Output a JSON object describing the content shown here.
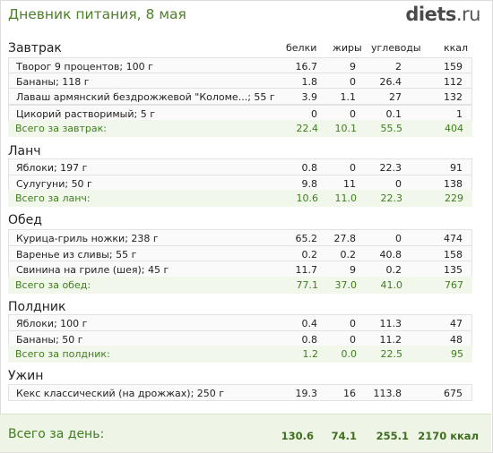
{
  "header": {
    "title": "Дневник питания, 8 мая",
    "logo_main": "diets",
    "logo_tld": ".ru"
  },
  "columns": {
    "protein": "белки",
    "fat": "жиры",
    "carbs": "углеводы",
    "kcal": "ккал"
  },
  "meals": [
    {
      "title": "Завтрак",
      "items": [
        {
          "name": "Творог 9 процентов; 100 г",
          "protein": "16.7",
          "fat": "9",
          "carbs": "2",
          "kcal": "159"
        },
        {
          "name": "Бананы; 118 г",
          "protein": "1.8",
          "fat": "0",
          "carbs": "26.4",
          "kcal": "112"
        },
        {
          "name": "Лаваш армянский бездрожжевой \"Коломе...; 55 г",
          "protein": "3.9",
          "fat": "1.1",
          "carbs": "27",
          "kcal": "132"
        },
        {
          "name": "Цикорий растворимый; 5 г",
          "protein": "0",
          "fat": "0",
          "carbs": "0.1",
          "kcal": "1"
        }
      ],
      "total": {
        "label": "Всего за завтрак:",
        "protein": "22.4",
        "fat": "10.1",
        "carbs": "55.5",
        "kcal": "404"
      }
    },
    {
      "title": "Ланч",
      "items": [
        {
          "name": "Яблоки; 197 г",
          "protein": "0.8",
          "fat": "0",
          "carbs": "22.3",
          "kcal": "91"
        },
        {
          "name": "Сулугуни; 50 г",
          "protein": "9.8",
          "fat": "11",
          "carbs": "0",
          "kcal": "138"
        }
      ],
      "total": {
        "label": "Всего за ланч:",
        "protein": "10.6",
        "fat": "11.0",
        "carbs": "22.3",
        "kcal": "229"
      }
    },
    {
      "title": "Обед",
      "items": [
        {
          "name": "Курица-гриль ножки; 238 г",
          "protein": "65.2",
          "fat": "27.8",
          "carbs": "0",
          "kcal": "474"
        },
        {
          "name": "Варенье из сливы; 55 г",
          "protein": "0.2",
          "fat": "0.2",
          "carbs": "40.8",
          "kcal": "158"
        },
        {
          "name": "Свинина на гриле (шея); 45 г",
          "protein": "11.7",
          "fat": "9",
          "carbs": "0.2",
          "kcal": "135"
        }
      ],
      "total": {
        "label": "Всего за обед:",
        "protein": "77.1",
        "fat": "37.0",
        "carbs": "41.0",
        "kcal": "767"
      }
    },
    {
      "title": "Полдник",
      "items": [
        {
          "name": "Яблоки; 100 г",
          "protein": "0.4",
          "fat": "0",
          "carbs": "11.3",
          "kcal": "47"
        },
        {
          "name": "Бананы; 50 г",
          "protein": "0.8",
          "fat": "0",
          "carbs": "11.2",
          "kcal": "48"
        }
      ],
      "total": {
        "label": "Всего за полдник:",
        "protein": "1.2",
        "fat": "0.0",
        "carbs": "22.5",
        "kcal": "95"
      }
    },
    {
      "title": "Ужин",
      "items": [
        {
          "name": "Кекс классический (на дрожжах); 250 г",
          "protein": "19.3",
          "fat": "16",
          "carbs": "113.8",
          "kcal": "675"
        }
      ]
    }
  ],
  "day_total": {
    "label": "Всего за день:",
    "protein": "130.6",
    "fat": "74.1",
    "carbs": "255.1",
    "kcal": "2170 ккал"
  }
}
